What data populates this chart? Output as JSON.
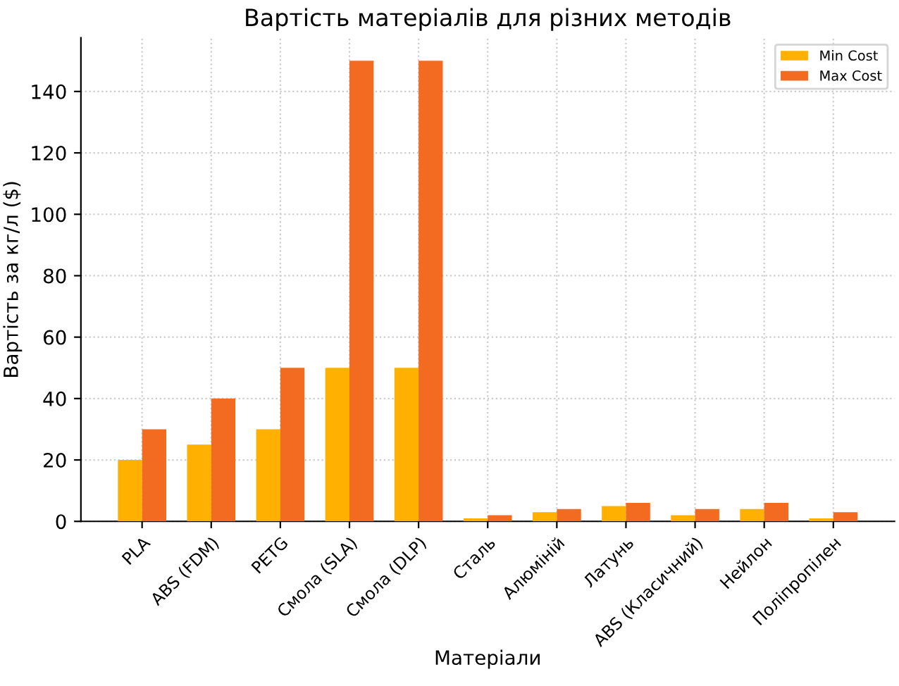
{
  "chart_data": {
    "type": "bar",
    "title": "Вартість матеріалів для різних методів",
    "xlabel": "Матеріали",
    "ylabel": "Вартість за кг/л ($)",
    "categories": [
      "PLA",
      "ABS (FDM)",
      "PETG",
      "Смола (SLA)",
      "Смола (DLP)",
      "Сталь",
      "Алюміній",
      "Латунь",
      "ABS (Класичний)",
      "Нейлон",
      "Поліпропілен"
    ],
    "series": [
      {
        "name": "Min Cost",
        "color": "#ffb000",
        "values": [
          20,
          25,
          30,
          50,
          50,
          1,
          3,
          5,
          2,
          4,
          1
        ]
      },
      {
        "name": "Max Cost",
        "color": "#f26b21",
        "values": [
          30,
          40,
          50,
          150,
          150,
          2,
          4,
          6,
          4,
          6,
          3
        ]
      }
    ],
    "ylim": [
      0,
      157.5
    ],
    "yticks": [
      0,
      20,
      40,
      60,
      80,
      100,
      120,
      140
    ],
    "grid": true,
    "legend": "top right"
  }
}
